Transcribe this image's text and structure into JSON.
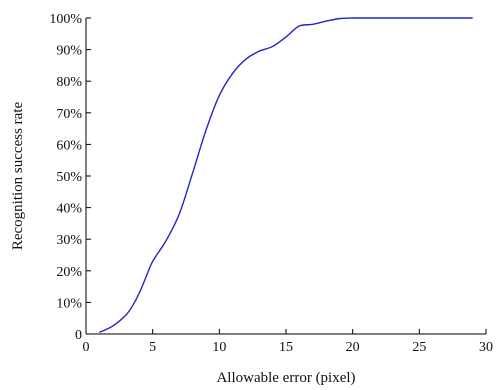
{
  "chart_data": {
    "type": "line",
    "title": "",
    "xlabel": "Allowable error (pixel)",
    "ylabel": "Recognition success rate",
    "xlim": [
      0,
      30
    ],
    "ylim": [
      0,
      100
    ],
    "xticks": [
      0,
      5,
      10,
      15,
      20,
      25,
      30
    ],
    "yticks": [
      0,
      10,
      20,
      30,
      40,
      50,
      60,
      70,
      80,
      90,
      100
    ],
    "xtick_labels": [
      "0",
      "5",
      "10",
      "15",
      "20",
      "25",
      "30"
    ],
    "ytick_labels": [
      "0",
      "10%",
      "20%",
      "30%",
      "40%",
      "50%",
      "60%",
      "70%",
      "80%",
      "90%",
      "100%"
    ],
    "grid": false,
    "series": [
      {
        "color": "#2323c8",
        "x": [
          1,
          2,
          3,
          3.5,
          4,
          4.5,
          5,
          6,
          7,
          8,
          9,
          10,
          11,
          12,
          13,
          14,
          15,
          16,
          17,
          18,
          19,
          20,
          21,
          22,
          25,
          29
        ],
        "y": [
          0.5,
          2.5,
          6,
          9,
          13,
          18,
          23,
          29.5,
          38,
          51,
          64.5,
          75.5,
          82.5,
          87,
          89.5,
          91,
          94,
          97.5,
          98,
          99,
          99.8,
          100,
          100,
          100,
          100,
          100
        ]
      }
    ]
  }
}
